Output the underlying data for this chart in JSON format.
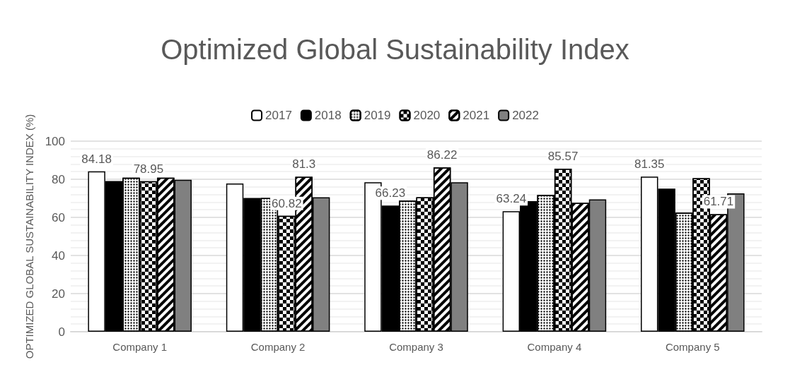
{
  "chart_data": {
    "type": "bar",
    "title": "Optimized Global Sustainability Index",
    "ylabel": "OPTIMIZED GLOBAL SUSTAINABILITY INDEX (%)",
    "categories": [
      "Company 1",
      "Company 2",
      "Company 3",
      "Company 4",
      "Company 5"
    ],
    "series": [
      {
        "name": "2017",
        "color": "#ffffff",
        "values": [
          84.18,
          77.8,
          78.4,
          63.24,
          81.35
        ],
        "value_labels": [
          "84.18",
          null,
          null,
          "63.24",
          "81.35"
        ]
      },
      {
        "name": "2018",
        "color": "#000000",
        "values": [
          79.1,
          70.2,
          66.23,
          68.5,
          75.1
        ],
        "value_labels": [
          null,
          null,
          "66.23",
          null,
          null
        ]
      },
      {
        "name": "2019",
        "color": "#ffffff",
        "values": [
          80.8,
          70.2,
          68.8,
          71.8,
          62.5
        ]
      },
      {
        "name": "2020",
        "color": "#ffffff",
        "values": [
          78.95,
          60.82,
          70.6,
          85.57,
          80.6
        ],
        "value_labels": [
          "78.95",
          "60.82",
          null,
          "85.57",
          null
        ]
      },
      {
        "name": "2021",
        "color": "#ffffff",
        "values": [
          80.8,
          81.3,
          86.22,
          67.6,
          61.71
        ],
        "value_labels": [
          null,
          "81.3",
          "86.22",
          null,
          "61.71"
        ]
      },
      {
        "name": "2022",
        "color": "#808080",
        "values": [
          79.7,
          70.6,
          78.4,
          69.4,
          72.6
        ]
      }
    ],
    "ylim": [
      0,
      100
    ],
    "yticks": [
      0,
      20,
      40,
      60,
      80,
      100
    ],
    "grid": "y",
    "legend": "top"
  }
}
